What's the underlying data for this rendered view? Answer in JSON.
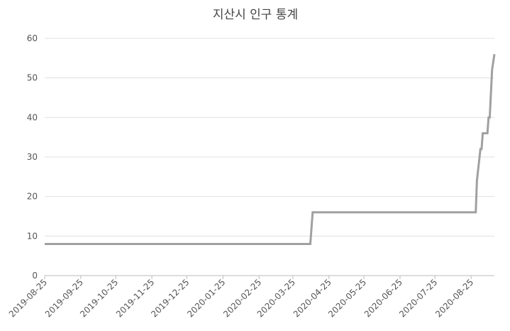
{
  "chart_data": {
    "type": "line",
    "title": "지산시 인구 통계",
    "x": [
      "2019-08-25",
      "2020-04-09",
      "2020-04-10",
      "2020-04-11",
      "2020-08-29",
      "2020-08-30",
      "2020-09-02",
      "2020-09-03",
      "2020-09-04",
      "2020-09-08",
      "2020-09-09",
      "2020-09-10",
      "2020-09-12",
      "2020-09-14"
    ],
    "values": [
      8,
      8,
      12,
      16,
      16,
      24,
      32,
      32,
      36,
      36,
      40,
      40,
      52,
      56
    ],
    "color": "#a0a0a0",
    "xlim": [
      "2019-08-25",
      "2020-09-14"
    ],
    "xticks": [
      "2019-08-25",
      "2019-09-25",
      "2019-10-25",
      "2019-11-25",
      "2019-12-25",
      "2020-01-25",
      "2020-02-25",
      "2020-03-25",
      "2020-04-25",
      "2020-05-25",
      "2020-06-25",
      "2020-07-25",
      "2020-08-25"
    ],
    "ylim": [
      0,
      60
    ],
    "yticks": [
      0,
      10,
      20,
      30,
      40,
      50,
      60
    ],
    "grid": true
  }
}
